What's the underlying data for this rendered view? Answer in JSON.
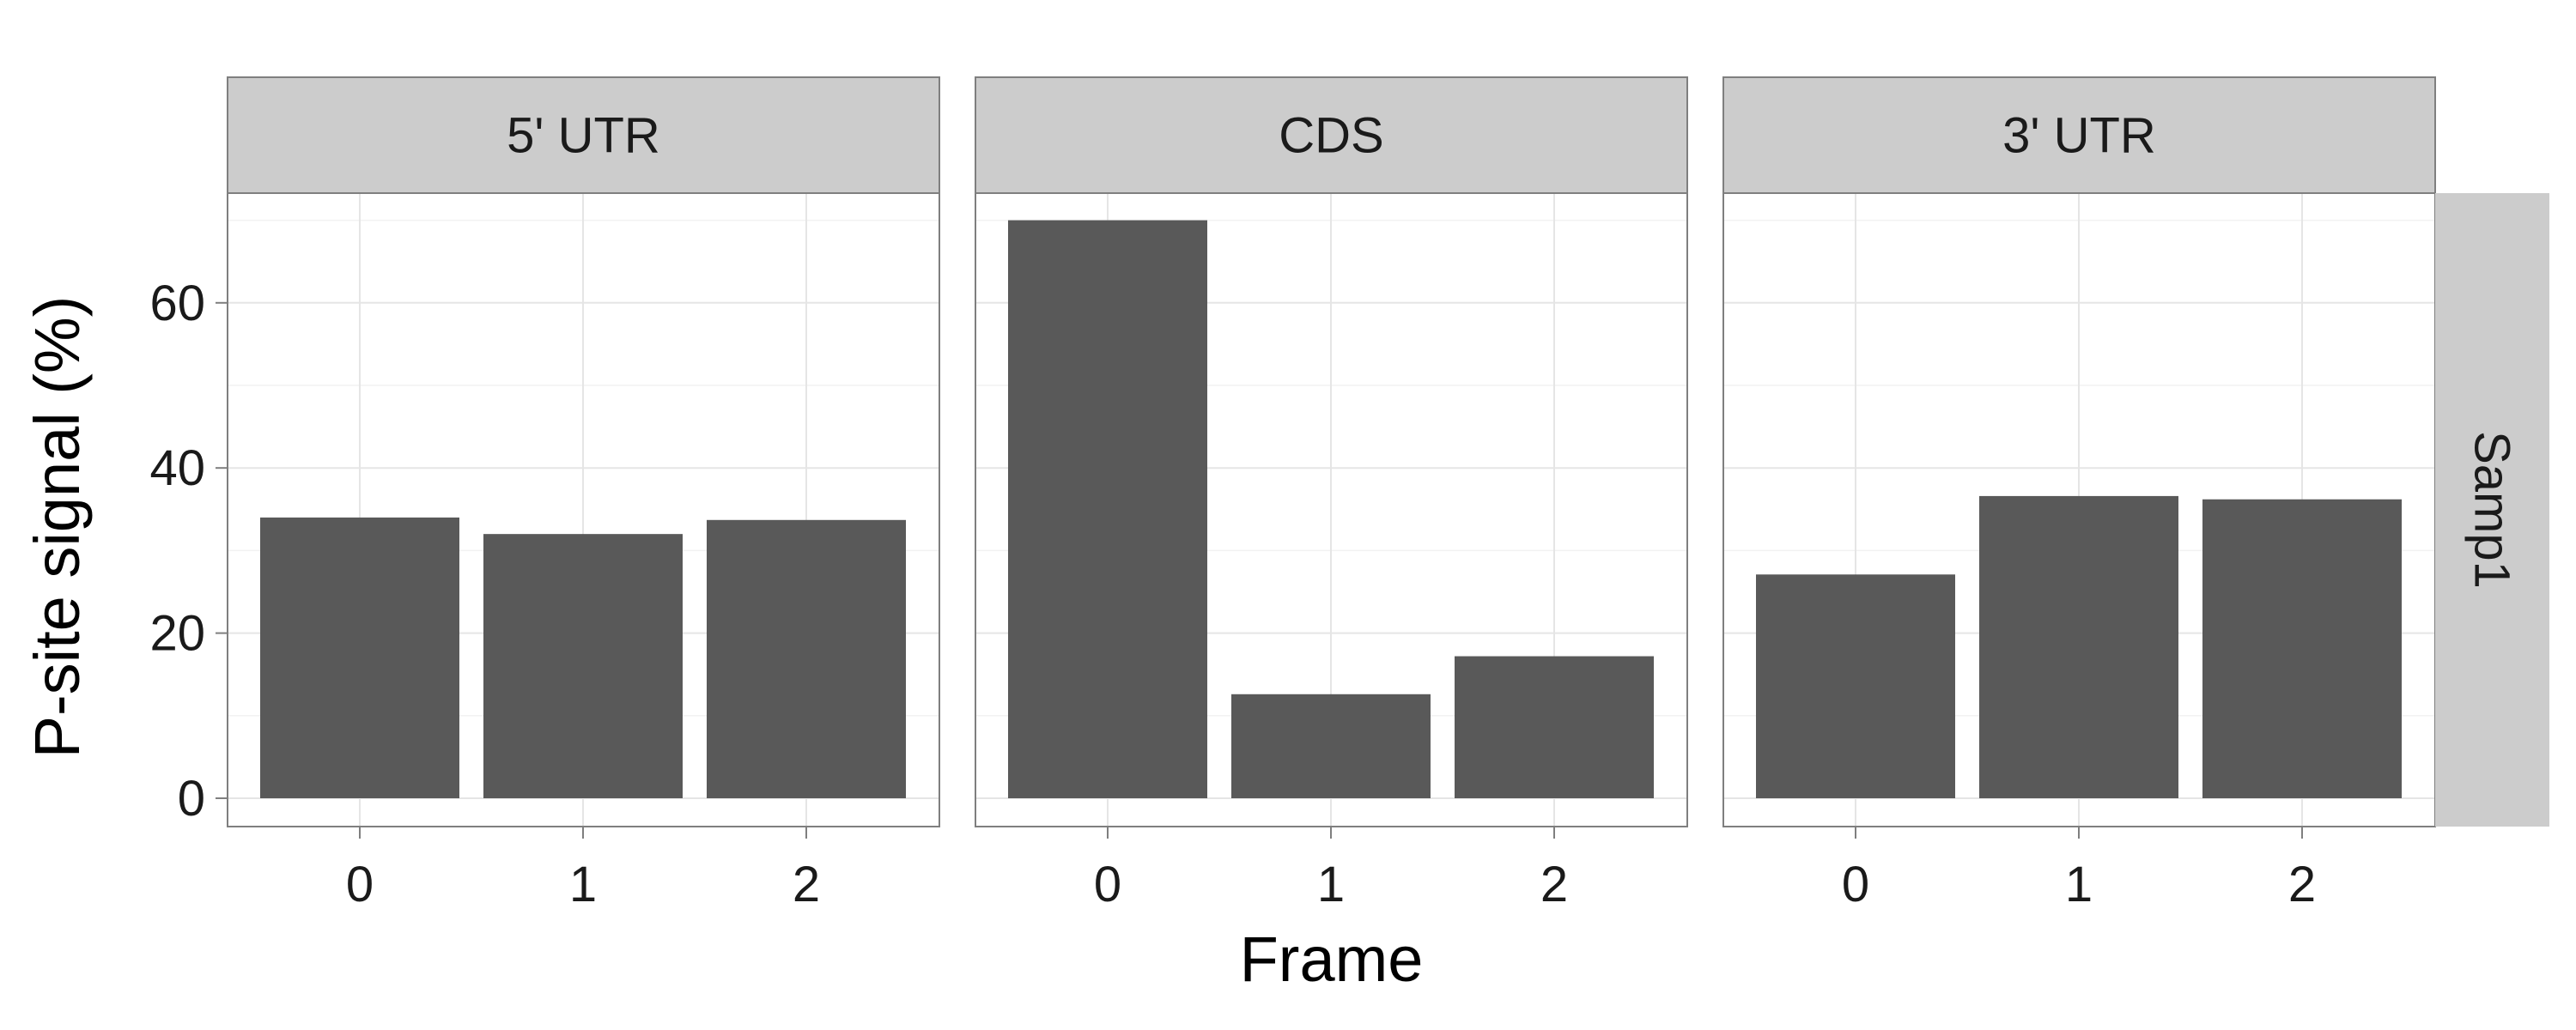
{
  "chart_data": {
    "type": "bar",
    "xlabel": "Frame",
    "ylabel": "P-site signal (%)",
    "ylim": [
      0,
      73
    ],
    "yticks": [
      "0",
      "20",
      "40",
      "60"
    ],
    "ytick_values": [
      0,
      20,
      40,
      60
    ],
    "categories": [
      "0",
      "1",
      "2"
    ],
    "row_label": "Samp1",
    "bar_color": "#595959",
    "strip_color": "#cccccc",
    "grid": true,
    "panels": [
      {
        "label": "5' UTR",
        "values": [
          34.0,
          32.0,
          33.7
        ]
      },
      {
        "label": "CDS",
        "values": [
          70.0,
          12.6,
          17.2
        ]
      },
      {
        "label": "3' UTR",
        "values": [
          27.1,
          36.6,
          36.2
        ]
      }
    ]
  }
}
